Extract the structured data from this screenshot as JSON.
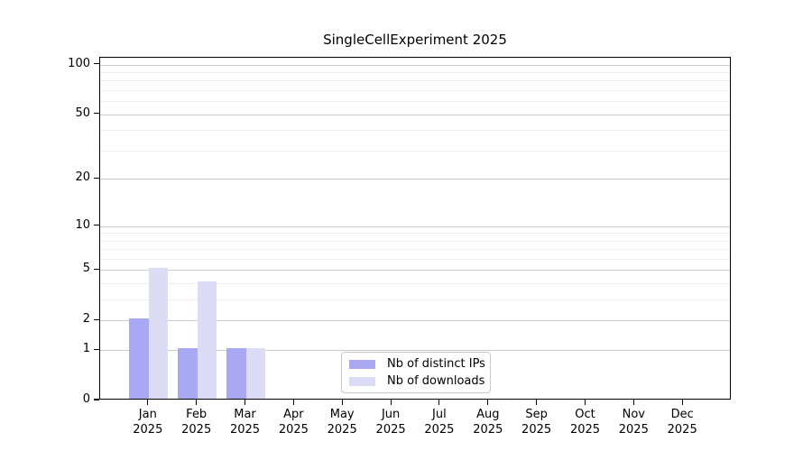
{
  "chart_data": {
    "type": "bar",
    "title": "SingleCellExperiment 2025",
    "categories": [
      "Jan",
      "Feb",
      "Mar",
      "Apr",
      "May",
      "Jun",
      "Jul",
      "Aug",
      "Sep",
      "Oct",
      "Nov",
      "Dec"
    ],
    "year_label": "2025",
    "series": [
      {
        "name": "Nb of distinct IPs",
        "color": "#a9a9f3",
        "values": [
          2,
          1,
          1,
          0,
          0,
          0,
          0,
          0,
          0,
          0,
          0,
          0
        ]
      },
      {
        "name": "Nb of downloads",
        "color": "#dcdcf7",
        "values": [
          5,
          4,
          1,
          0,
          0,
          0,
          0,
          0,
          0,
          0,
          0,
          0
        ]
      }
    ],
    "xlabel": "",
    "ylabel": "",
    "yscale": "log1p",
    "ylim": [
      0,
      110
    ],
    "y_major_ticks": [
      0,
      1,
      2,
      5,
      10,
      20,
      50,
      100
    ],
    "y_minor_ticks": [
      3,
      4,
      6,
      7,
      8,
      9,
      30,
      40,
      60,
      70,
      80,
      90
    ],
    "grid": "on",
    "legend_position": "lower center inside plot",
    "colors": {
      "grid_major": "#cccccc",
      "grid_minor": "#ededed",
      "axis": "#000000",
      "background": "#ffffff"
    }
  }
}
